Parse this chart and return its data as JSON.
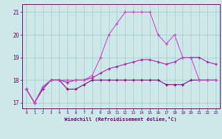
{
  "xlabel": "Windchill (Refroidissement éolien,°C)",
  "x": [
    0,
    1,
    2,
    3,
    4,
    5,
    6,
    7,
    8,
    9,
    10,
    11,
    12,
    13,
    14,
    15,
    16,
    17,
    18,
    19,
    20,
    21,
    22,
    23
  ],
  "line1": [
    17.6,
    17.0,
    17.6,
    18.0,
    18.0,
    17.6,
    17.6,
    17.8,
    18.0,
    18.0,
    18.0,
    18.0,
    18.0,
    18.0,
    18.0,
    18.0,
    18.0,
    17.8,
    17.8,
    17.8,
    18.0,
    18.0,
    18.0,
    18.0
  ],
  "line2": [
    17.6,
    17.0,
    17.7,
    18.0,
    18.0,
    17.9,
    18.0,
    18.0,
    18.1,
    18.3,
    18.5,
    18.6,
    18.7,
    18.8,
    18.9,
    18.9,
    18.8,
    18.7,
    18.8,
    19.0,
    19.0,
    19.0,
    18.8,
    18.7
  ],
  "line3": [
    17.6,
    17.0,
    17.7,
    18.0,
    18.0,
    18.0,
    18.0,
    18.0,
    18.2,
    19.0,
    20.0,
    20.5,
    21.0,
    21.0,
    21.0,
    21.0,
    20.0,
    19.6,
    20.0,
    19.0,
    19.0,
    18.0,
    18.0,
    18.0
  ],
  "line_color1": "#880088",
  "line_color2": "#aa22aa",
  "line_color3": "#cc44cc",
  "bg_color": "#cce8e8",
  "grid_color": "#aacccc",
  "text_color": "#660066",
  "ylim": [
    16.75,
    21.35
  ],
  "yticks": [
    17,
    18,
    19,
    20,
    21
  ],
  "xlim": [
    -0.5,
    23.5
  ]
}
